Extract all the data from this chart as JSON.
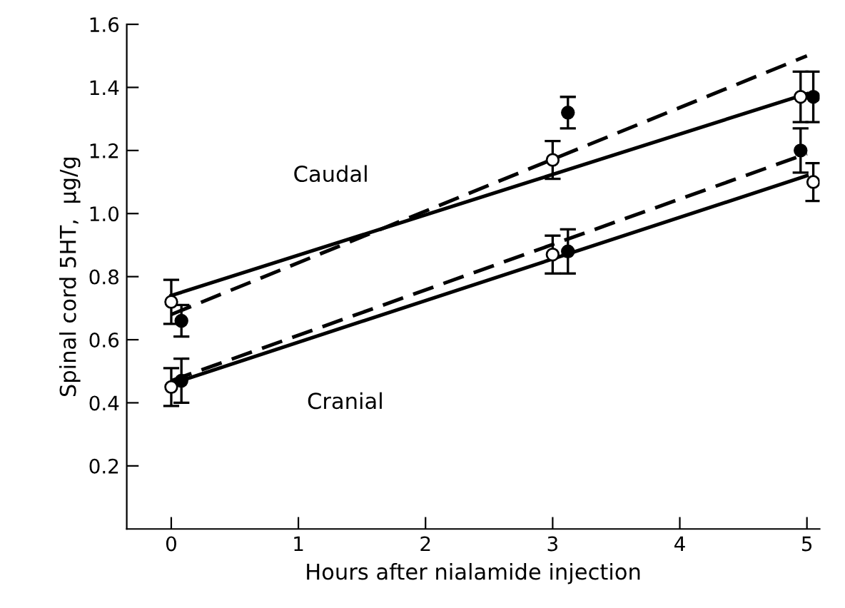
{
  "chart_data": {
    "type": "scatter",
    "xlabel": "Hours after nialamide injection",
    "ylabel": "Spinal cord 5HT,  μg/g",
    "xlim": [
      -0.35,
      5.1
    ],
    "ylim": [
      0,
      1.6
    ],
    "xticks": [
      0,
      1,
      2,
      3,
      4,
      5
    ],
    "yticks": [
      0.2,
      0.4,
      0.6,
      0.8,
      {
        "value": 1.0,
        "label": "1.0"
      },
      1.2,
      1.4,
      1.6
    ],
    "grid": false,
    "legend": false,
    "marker": "circle",
    "annotations": [
      "Caudal",
      "Cranial"
    ],
    "series": [
      {
        "color": "#ffffff",
        "x": [
          0,
          3.0,
          4.95
        ],
        "values": [
          0.72,
          1.17,
          1.37
        ],
        "errors": [
          0.07,
          0.06,
          0.08
        ]
      },
      {
        "color": "#000000",
        "x": [
          0.08,
          3.12,
          5.05
        ],
        "values": [
          0.66,
          1.32,
          1.37
        ],
        "errors": [
          0.05,
          0.05,
          0.08
        ]
      },
      {
        "color": "#ffffff",
        "x": [
          0,
          3.0,
          5.05
        ],
        "values": [
          0.45,
          0.87,
          1.1
        ],
        "errors": [
          0.06,
          0.06,
          0.06
        ]
      },
      {
        "color": "#000000",
        "x": [
          0.08,
          3.12,
          4.95
        ],
        "values": [
          0.47,
          0.88,
          1.2
        ],
        "errors": [
          0.07,
          0.07,
          0.07
        ]
      },
      {
        "type": "line",
        "color": "#000000",
        "line_style": "solid",
        "marker": "none",
        "x": [
          0,
          5
        ],
        "values": [
          0.74,
          1.38
        ]
      },
      {
        "type": "line",
        "color": "#000000",
        "line_style": "dashed",
        "marker": "none",
        "x": [
          0,
          5
        ],
        "values": [
          0.68,
          1.5
        ]
      },
      {
        "type": "line",
        "color": "#000000",
        "line_style": "dashed",
        "marker": "none",
        "x": [
          0,
          5
        ],
        "values": [
          0.47,
          1.19
        ]
      },
      {
        "type": "line",
        "color": "#000000",
        "line_style": "solid",
        "marker": "none",
        "x": [
          0,
          5
        ],
        "values": [
          0.46,
          1.12
        ]
      }
    ]
  }
}
